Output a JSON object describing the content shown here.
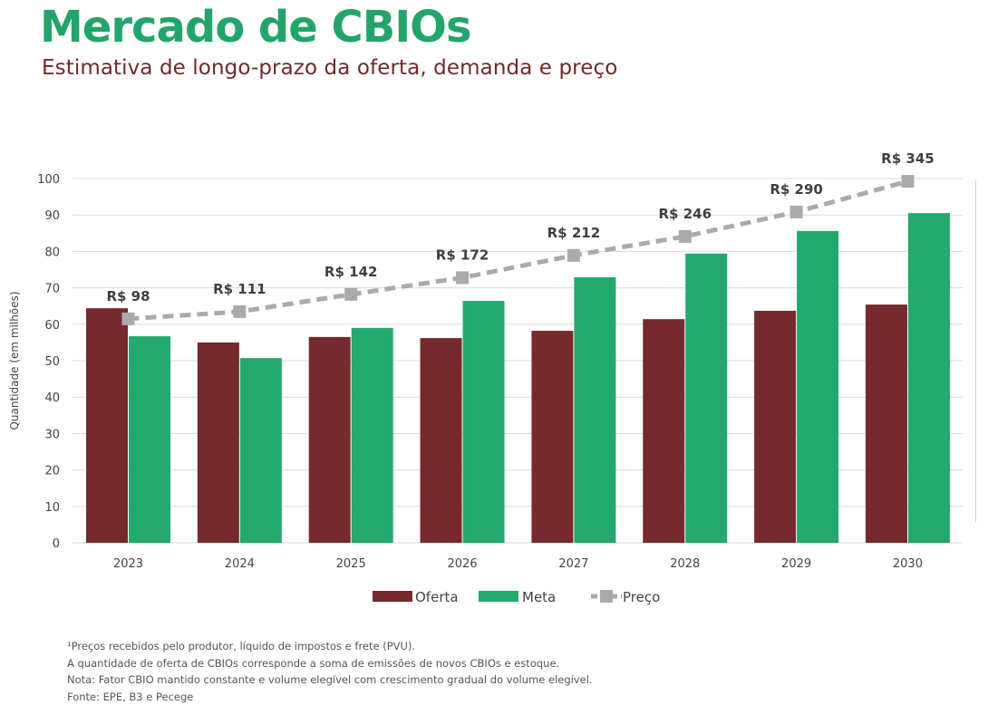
{
  "header": {
    "title": "Mercado de CBIOs",
    "subtitle": "Estimativa de longo-prazo da oferta, demanda e preço"
  },
  "chart_data": {
    "type": "bar",
    "title": "",
    "xlabel": "",
    "ylabel": "Quantidade (em milhões)",
    "ylim": [
      0,
      100
    ],
    "yticks": [
      0,
      10,
      20,
      30,
      40,
      50,
      60,
      70,
      80,
      90,
      100
    ],
    "grid": true,
    "categories": [
      "2023",
      "2024",
      "2025",
      "2026",
      "2027",
      "2028",
      "2029",
      "2030"
    ],
    "series": [
      {
        "name": "Oferta",
        "type": "bar",
        "color": "#762a2d",
        "values": [
          64.4,
          55.0,
          56.5,
          56.2,
          58.2,
          61.4,
          63.7,
          65.4
        ]
      },
      {
        "name": "Meta",
        "type": "bar",
        "color": "#23a96e",
        "values": [
          56.7,
          50.7,
          59.0,
          66.4,
          72.9,
          79.4,
          85.6,
          90.5
        ]
      },
      {
        "name": "Preço",
        "type": "line",
        "style": "dashed",
        "marker": "square",
        "color": "#aaaaaa",
        "axis": "secondary-hidden",
        "secondary_ylim": [
          -304,
          350
        ],
        "values": [
          98,
          111,
          142,
          172,
          212,
          246,
          290,
          345
        ],
        "labels": [
          "R$ 98",
          "R$ 111",
          "R$ 142",
          "R$ 172",
          "R$ 212",
          "R$ 246",
          "R$ 290",
          "R$ 345"
        ]
      }
    ],
    "legend": {
      "placement": "bottom",
      "entries": [
        "Oferta",
        "Meta",
        "Preço"
      ]
    }
  },
  "notes": [
    "¹Preços recebidos pelo produtor, líquido de impostos e frete (PVU).",
    "A quantidade de oferta de CBIOs corresponde a soma de emissões de novos CBIOs e estoque.",
    "Nota: Fator CBIO mantido constante e volume elegível com crescimento gradual do volume elegível.",
    "Fonte: EPE, B3 e Pecege"
  ]
}
